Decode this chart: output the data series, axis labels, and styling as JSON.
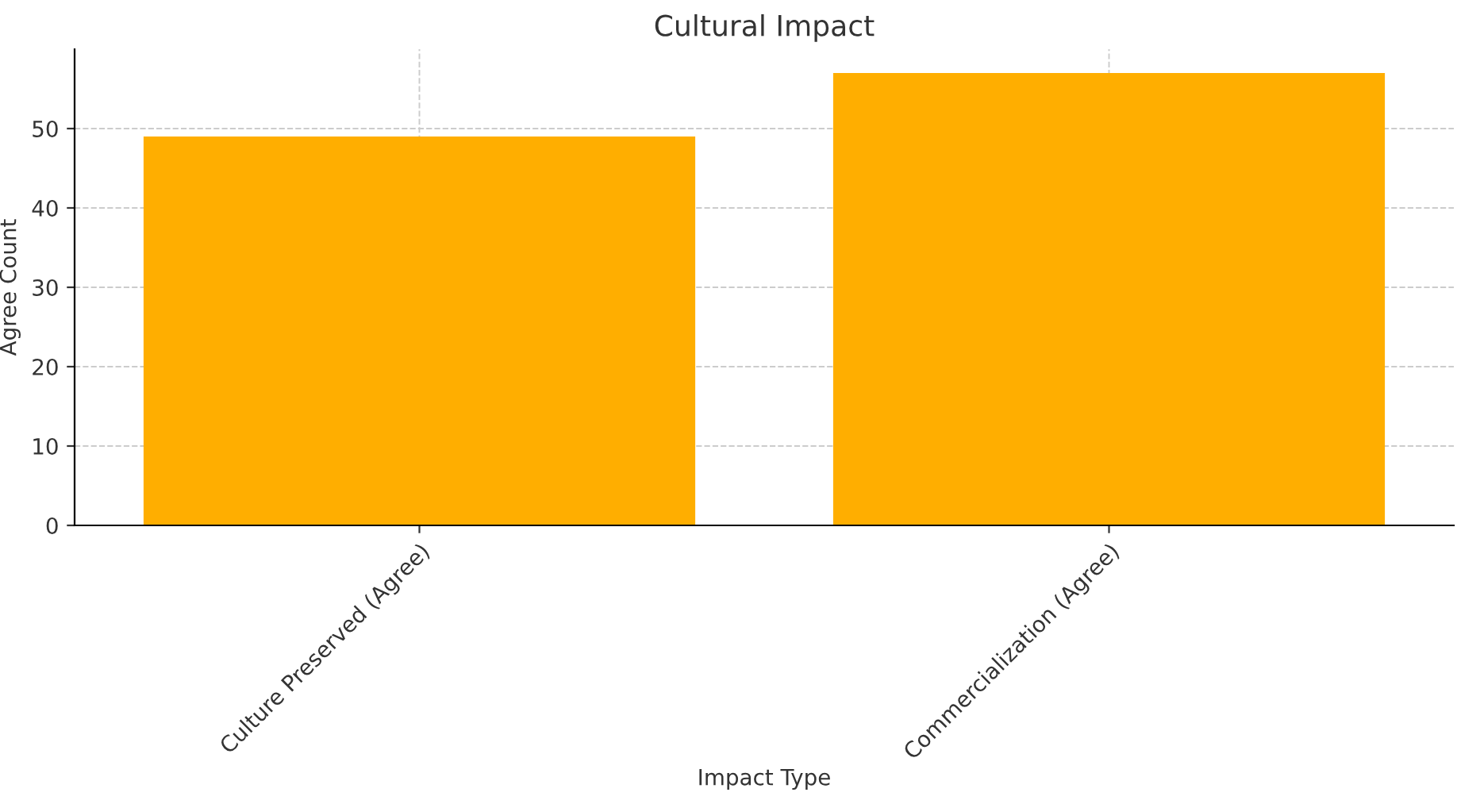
{
  "chart_data": {
    "type": "bar",
    "title": "Cultural Impact",
    "xlabel": "Impact Type",
    "ylabel": "Agree Count",
    "categories": [
      "Culture Preserved (Agree)",
      "Commercialization (Agree)"
    ],
    "values": [
      49,
      57
    ],
    "color": "#ffae00",
    "ylim": [
      0,
      60
    ],
    "yticks": [
      0,
      10,
      20,
      30,
      40,
      50
    ],
    "grid": true
  }
}
